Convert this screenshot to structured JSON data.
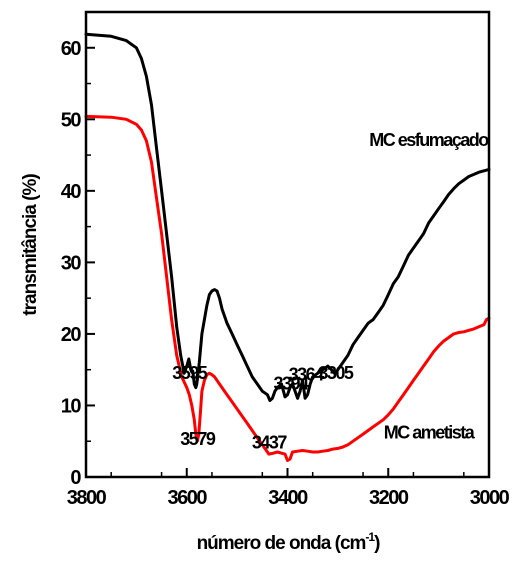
{
  "chart_data": {
    "type": "line",
    "title": "",
    "xlabel": "número de onda (cm",
    "xlabel_sup": "-1",
    "xlabel_close": ")",
    "ylabel": "transmitância (%)",
    "xlim": [
      3800,
      3000
    ],
    "ylim": [
      0,
      65
    ],
    "x_ticks": [
      "3800",
      "3600",
      "3400",
      "3200",
      "3000"
    ],
    "y_ticks": [
      "0",
      "10",
      "20",
      "30",
      "40",
      "50",
      "60"
    ],
    "grid": false,
    "legend": "none",
    "series": [
      {
        "name": "MC esfumaçado",
        "color": "#000000",
        "x": [
          3800,
          3750,
          3720,
          3700,
          3690,
          3680,
          3670,
          3660,
          3650,
          3640,
          3630,
          3620,
          3612,
          3605,
          3600,
          3596,
          3592,
          3588,
          3585,
          3582,
          3580,
          3575,
          3570,
          3565,
          3560,
          3555,
          3550,
          3545,
          3540,
          3535,
          3530,
          3520,
          3510,
          3500,
          3490,
          3480,
          3470,
          3460,
          3450,
          3440,
          3435,
          3430,
          3425,
          3420,
          3412,
          3405,
          3400,
          3395,
          3390,
          3385,
          3380,
          3375,
          3370,
          3365,
          3360,
          3355,
          3350,
          3340,
          3330,
          3320,
          3310,
          3305,
          3300,
          3290,
          3280,
          3270,
          3260,
          3250,
          3240,
          3230,
          3220,
          3210,
          3200,
          3190,
          3180,
          3170,
          3160,
          3150,
          3140,
          3130,
          3120,
          3110,
          3100,
          3090,
          3080,
          3070,
          3060,
          3050,
          3040,
          3030,
          3020,
          3010,
          3000
        ],
        "y": [
          61.9,
          61.6,
          61,
          60,
          58.5,
          56,
          52,
          46,
          40,
          34,
          28,
          21,
          17,
          14.5,
          15.5,
          16.5,
          15,
          14.8,
          13,
          12.5,
          13,
          16,
          20,
          22,
          24,
          25.5,
          26,
          26.2,
          26,
          25,
          23.5,
          21.5,
          20,
          18.5,
          17,
          15.5,
          14,
          13,
          12,
          11.5,
          10.7,
          11,
          12,
          12.5,
          13,
          11.2,
          11.5,
          12.5,
          13,
          12,
          11,
          12,
          13.5,
          11,
          11.5,
          13,
          14,
          14.5,
          15,
          15.5,
          14.8,
          14.5,
          15,
          16,
          17,
          18.5,
          19.5,
          20.5,
          21.5,
          22,
          23,
          24,
          25.5,
          27,
          28,
          29.5,
          31,
          32,
          33,
          34,
          35.5,
          36.5,
          37.5,
          38.5,
          39.5,
          40.3,
          41,
          41.5,
          42,
          42.3,
          42.6,
          42.8,
          43
        ]
      },
      {
        "name": "MC ametista",
        "color": "#ff0000",
        "x": [
          3800,
          3750,
          3720,
          3700,
          3690,
          3680,
          3670,
          3660,
          3650,
          3640,
          3630,
          3620,
          3610,
          3600,
          3595,
          3590,
          3585,
          3582,
          3579,
          3576,
          3573,
          3570,
          3565,
          3560,
          3555,
          3550,
          3545,
          3540,
          3530,
          3520,
          3510,
          3500,
          3490,
          3480,
          3470,
          3460,
          3450,
          3440,
          3437,
          3430,
          3420,
          3410,
          3405,
          3400,
          3395,
          3390,
          3380,
          3370,
          3360,
          3350,
          3340,
          3330,
          3320,
          3310,
          3300,
          3290,
          3280,
          3270,
          3260,
          3250,
          3240,
          3230,
          3220,
          3210,
          3200,
          3190,
          3180,
          3170,
          3160,
          3150,
          3140,
          3130,
          3120,
          3110,
          3100,
          3090,
          3080,
          3070,
          3060,
          3050,
          3040,
          3030,
          3020,
          3010,
          3005,
          3000
        ],
        "y": [
          50.4,
          50.3,
          50,
          49.3,
          48.5,
          47,
          44,
          39,
          34,
          28,
          22,
          17,
          14,
          12.5,
          11.5,
          10,
          8,
          6,
          5,
          6,
          9,
          12,
          13.5,
          14.3,
          14.5,
          14.3,
          14,
          13.5,
          12.5,
          11.5,
          10.5,
          9.5,
          8.5,
          7.5,
          6.5,
          5.5,
          4.5,
          3.5,
          3.2,
          3.3,
          3.5,
          3.3,
          3.2,
          2.3,
          2.5,
          3.5,
          3.6,
          3.7,
          3.6,
          3.5,
          3.5,
          3.6,
          3.7,
          3.9,
          4,
          4.2,
          4.5,
          5,
          5.5,
          6,
          6.5,
          7,
          7.5,
          8,
          8.7,
          9.5,
          10.5,
          11.5,
          12.5,
          13.5,
          14.5,
          15.5,
          16.5,
          17.5,
          18.3,
          19,
          19.5,
          20,
          20.2,
          20.3,
          20.5,
          20.7,
          21,
          21.3,
          22,
          22.2
        ]
      }
    ],
    "annotations": [
      {
        "text": "3595",
        "x": 3595,
        "y": 13.7
      },
      {
        "text": "3579",
        "x": 3579,
        "y": 4.5
      },
      {
        "text": "3437",
        "x": 3437,
        "y": 4
      },
      {
        "text": "3394",
        "x": 3394,
        "y": 12.2
      },
      {
        "text": "3364",
        "x": 3364,
        "y": 13.5
      },
      {
        "text": "3305",
        "x": 3305,
        "y": 13.7
      },
      {
        "text": "MC esfumaçado",
        "x": 3120,
        "y": 46.3
      },
      {
        "text": "MC ametista",
        "x": 3120,
        "y": 5.4
      }
    ]
  }
}
